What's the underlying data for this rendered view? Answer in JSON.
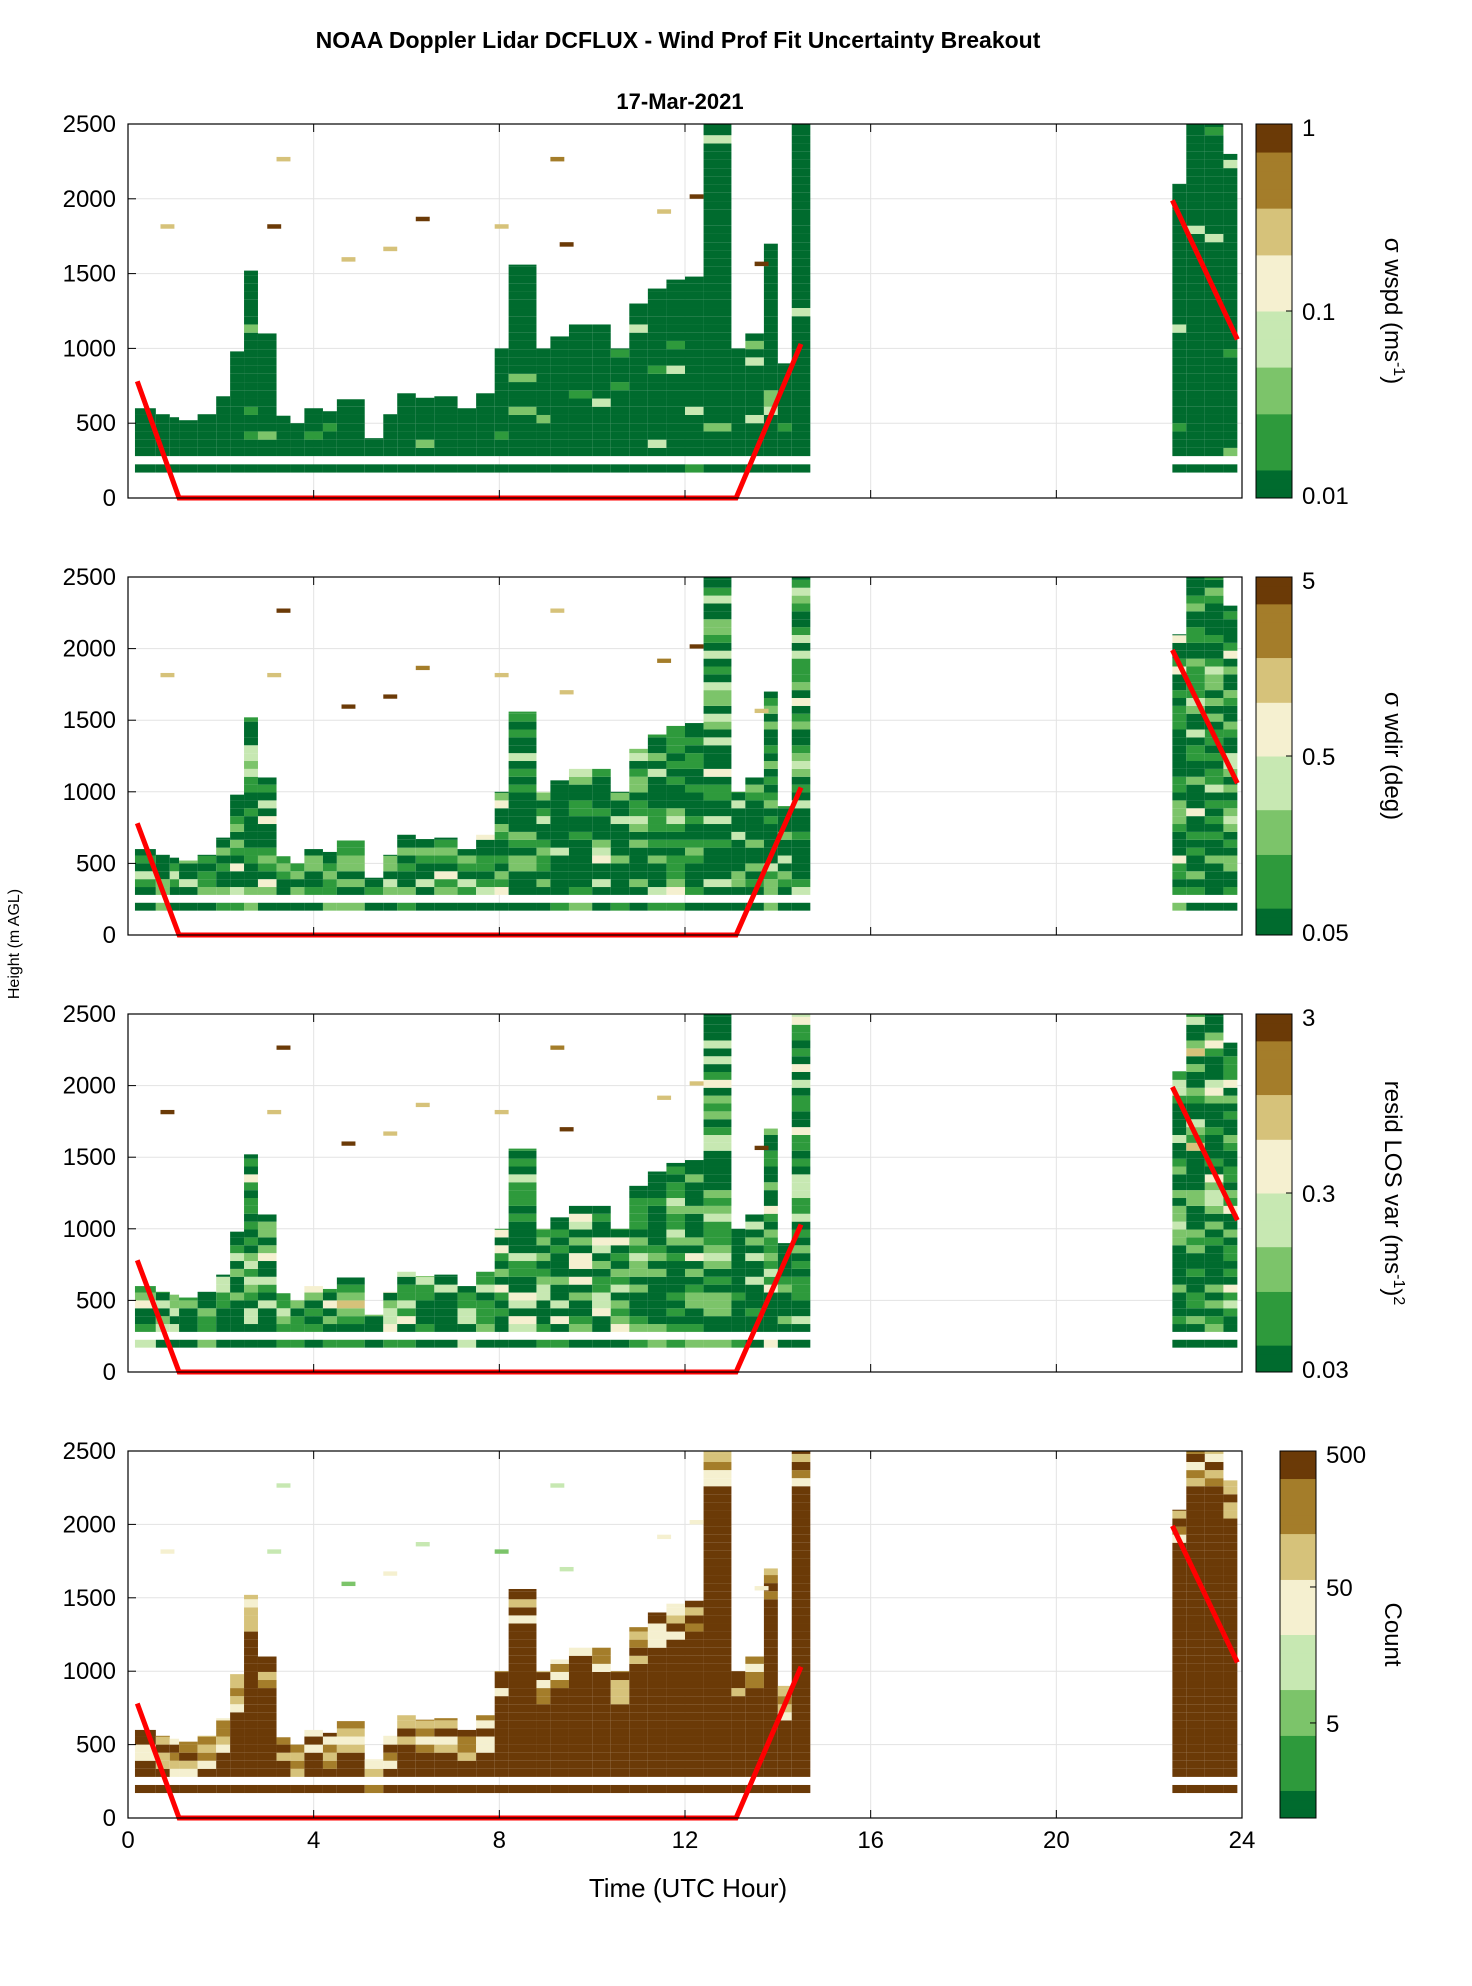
{
  "figure": {
    "title": "NOAA Doppler Lidar DCFLUX - Wind Prof Fit Uncertainty Breakout",
    "date": "17-Mar-2021",
    "shared_ylabel": "Height (m AGL)",
    "xlabel": "Time (UTC Hour)"
  },
  "colors": {
    "boundary_layer_line": "#ff0000",
    "colormap": [
      "#006b2e",
      "#2e9a3c",
      "#7cc46a",
      "#c7e8b2",
      "#f5f0d0",
      "#d6c27a",
      "#a47d2a",
      "#6b3a07"
    ]
  },
  "chart_data": [
    {
      "type": "heatmap",
      "panel": 1,
      "ylim": [
        0,
        2500
      ],
      "xlim": [
        0,
        24
      ],
      "xticks": [
        0,
        4,
        8,
        12,
        16,
        20,
        24
      ],
      "yticks": [
        0,
        500,
        1000,
        1500,
        2000,
        2500
      ],
      "colorbar": {
        "scale": "log",
        "min": 0.01,
        "max": 1,
        "ticks": [
          "0.01",
          "0.1",
          "1"
        ],
        "label_main": "σ wspd (ms",
        "label_sup": "-1",
        "label_end": ")"
      },
      "grid": true
    },
    {
      "type": "heatmap",
      "panel": 2,
      "ylim": [
        0,
        2500
      ],
      "xlim": [
        0,
        24
      ],
      "colorbar": {
        "scale": "log",
        "min": 0.05,
        "max": 5,
        "ticks": [
          "0.05",
          "0.5",
          "5"
        ],
        "label_main": "σ wdir (deg)",
        "label_sup": "",
        "label_end": ""
      },
      "grid": true
    },
    {
      "type": "heatmap",
      "panel": 3,
      "ylim": [
        0,
        2500
      ],
      "xlim": [
        0,
        24
      ],
      "colorbar": {
        "scale": "log",
        "min": 0.03,
        "max": 3,
        "ticks": [
          "0.03",
          "0.3",
          "3"
        ],
        "label_main": "resid LOS var (ms",
        "label_sup": "-1",
        "label_end": ")",
        "label_sup2": "2"
      },
      "grid": true
    },
    {
      "type": "heatmap",
      "panel": 4,
      "ylim": [
        0,
        2500
      ],
      "xlim": [
        0,
        24
      ],
      "colorbar": {
        "scale": "log",
        "min": 1,
        "max": 500,
        "ticks": [
          "5",
          "50",
          "500"
        ],
        "label_main": "Count",
        "label_sup": "",
        "label_end": ""
      },
      "grid": true
    }
  ],
  "boundary_layer_height": {
    "segment1": {
      "x": [
        0.2,
        1.1,
        13.1,
        14.5
      ],
      "y": [
        780,
        0,
        0,
        1030
      ]
    },
    "segment2": {
      "x": [
        22.5,
        23.9
      ],
      "y": [
        1990,
        1060
      ]
    }
  },
  "data_columns": {
    "day": [
      {
        "x": 0.15,
        "w": 0.45,
        "top": 600
      },
      {
        "x": 0.6,
        "w": 0.3,
        "top": 560
      },
      {
        "x": 0.9,
        "w": 0.2,
        "top": 540
      },
      {
        "x": 1.1,
        "w": 0.4,
        "top": 520
      },
      {
        "x": 1.5,
        "w": 0.4,
        "top": 560
      },
      {
        "x": 1.9,
        "w": 0.3,
        "top": 680
      },
      {
        "x": 2.2,
        "w": 0.3,
        "top": 980
      },
      {
        "x": 2.5,
        "w": 0.3,
        "top": 1520
      },
      {
        "x": 2.8,
        "w": 0.4,
        "top": 1100
      },
      {
        "x": 3.2,
        "w": 0.3,
        "top": 550
      },
      {
        "x": 3.5,
        "w": 0.3,
        "top": 500
      },
      {
        "x": 3.8,
        "w": 0.4,
        "top": 600
      },
      {
        "x": 4.2,
        "w": 0.3,
        "top": 580
      },
      {
        "x": 4.5,
        "w": 0.6,
        "top": 660
      },
      {
        "x": 5.1,
        "w": 0.4,
        "top": 400
      },
      {
        "x": 5.5,
        "w": 0.3,
        "top": 560
      },
      {
        "x": 5.8,
        "w": 0.4,
        "top": 700
      },
      {
        "x": 6.2,
        "w": 0.4,
        "top": 670
      },
      {
        "x": 6.6,
        "w": 0.5,
        "top": 680
      },
      {
        "x": 7.1,
        "w": 0.4,
        "top": 600
      },
      {
        "x": 7.5,
        "w": 0.4,
        "top": 700
      },
      {
        "x": 7.9,
        "w": 0.3,
        "top": 1000
      },
      {
        "x": 8.2,
        "w": 0.6,
        "top": 1560
      },
      {
        "x": 8.8,
        "w": 0.3,
        "top": 1000
      },
      {
        "x": 9.1,
        "w": 0.4,
        "top": 1080
      },
      {
        "x": 9.5,
        "w": 0.5,
        "top": 1160
      },
      {
        "x": 10.0,
        "w": 0.4,
        "top": 1160
      },
      {
        "x": 10.4,
        "w": 0.4,
        "top": 1000
      },
      {
        "x": 10.8,
        "w": 0.4,
        "top": 1300
      },
      {
        "x": 11.2,
        "w": 0.4,
        "top": 1400
      },
      {
        "x": 11.6,
        "w": 0.4,
        "top": 1460
      },
      {
        "x": 12.0,
        "w": 0.4,
        "top": 1480
      },
      {
        "x": 12.4,
        "w": 0.6,
        "top": 2500
      },
      {
        "x": 13.0,
        "w": 0.3,
        "top": 1000
      },
      {
        "x": 13.3,
        "w": 0.4,
        "top": 1100
      },
      {
        "x": 13.7,
        "w": 0.3,
        "top": 1700
      },
      {
        "x": 14.0,
        "w": 0.3,
        "top": 900
      },
      {
        "x": 14.3,
        "w": 0.4,
        "top": 2500
      }
    ],
    "night": [
      {
        "x": 22.5,
        "w": 0.3,
        "top": 2100
      },
      {
        "x": 22.8,
        "w": 0.4,
        "top": 2500
      },
      {
        "x": 23.2,
        "w": 0.4,
        "top": 2500
      },
      {
        "x": 23.6,
        "w": 0.3,
        "top": 2300
      }
    ]
  }
}
